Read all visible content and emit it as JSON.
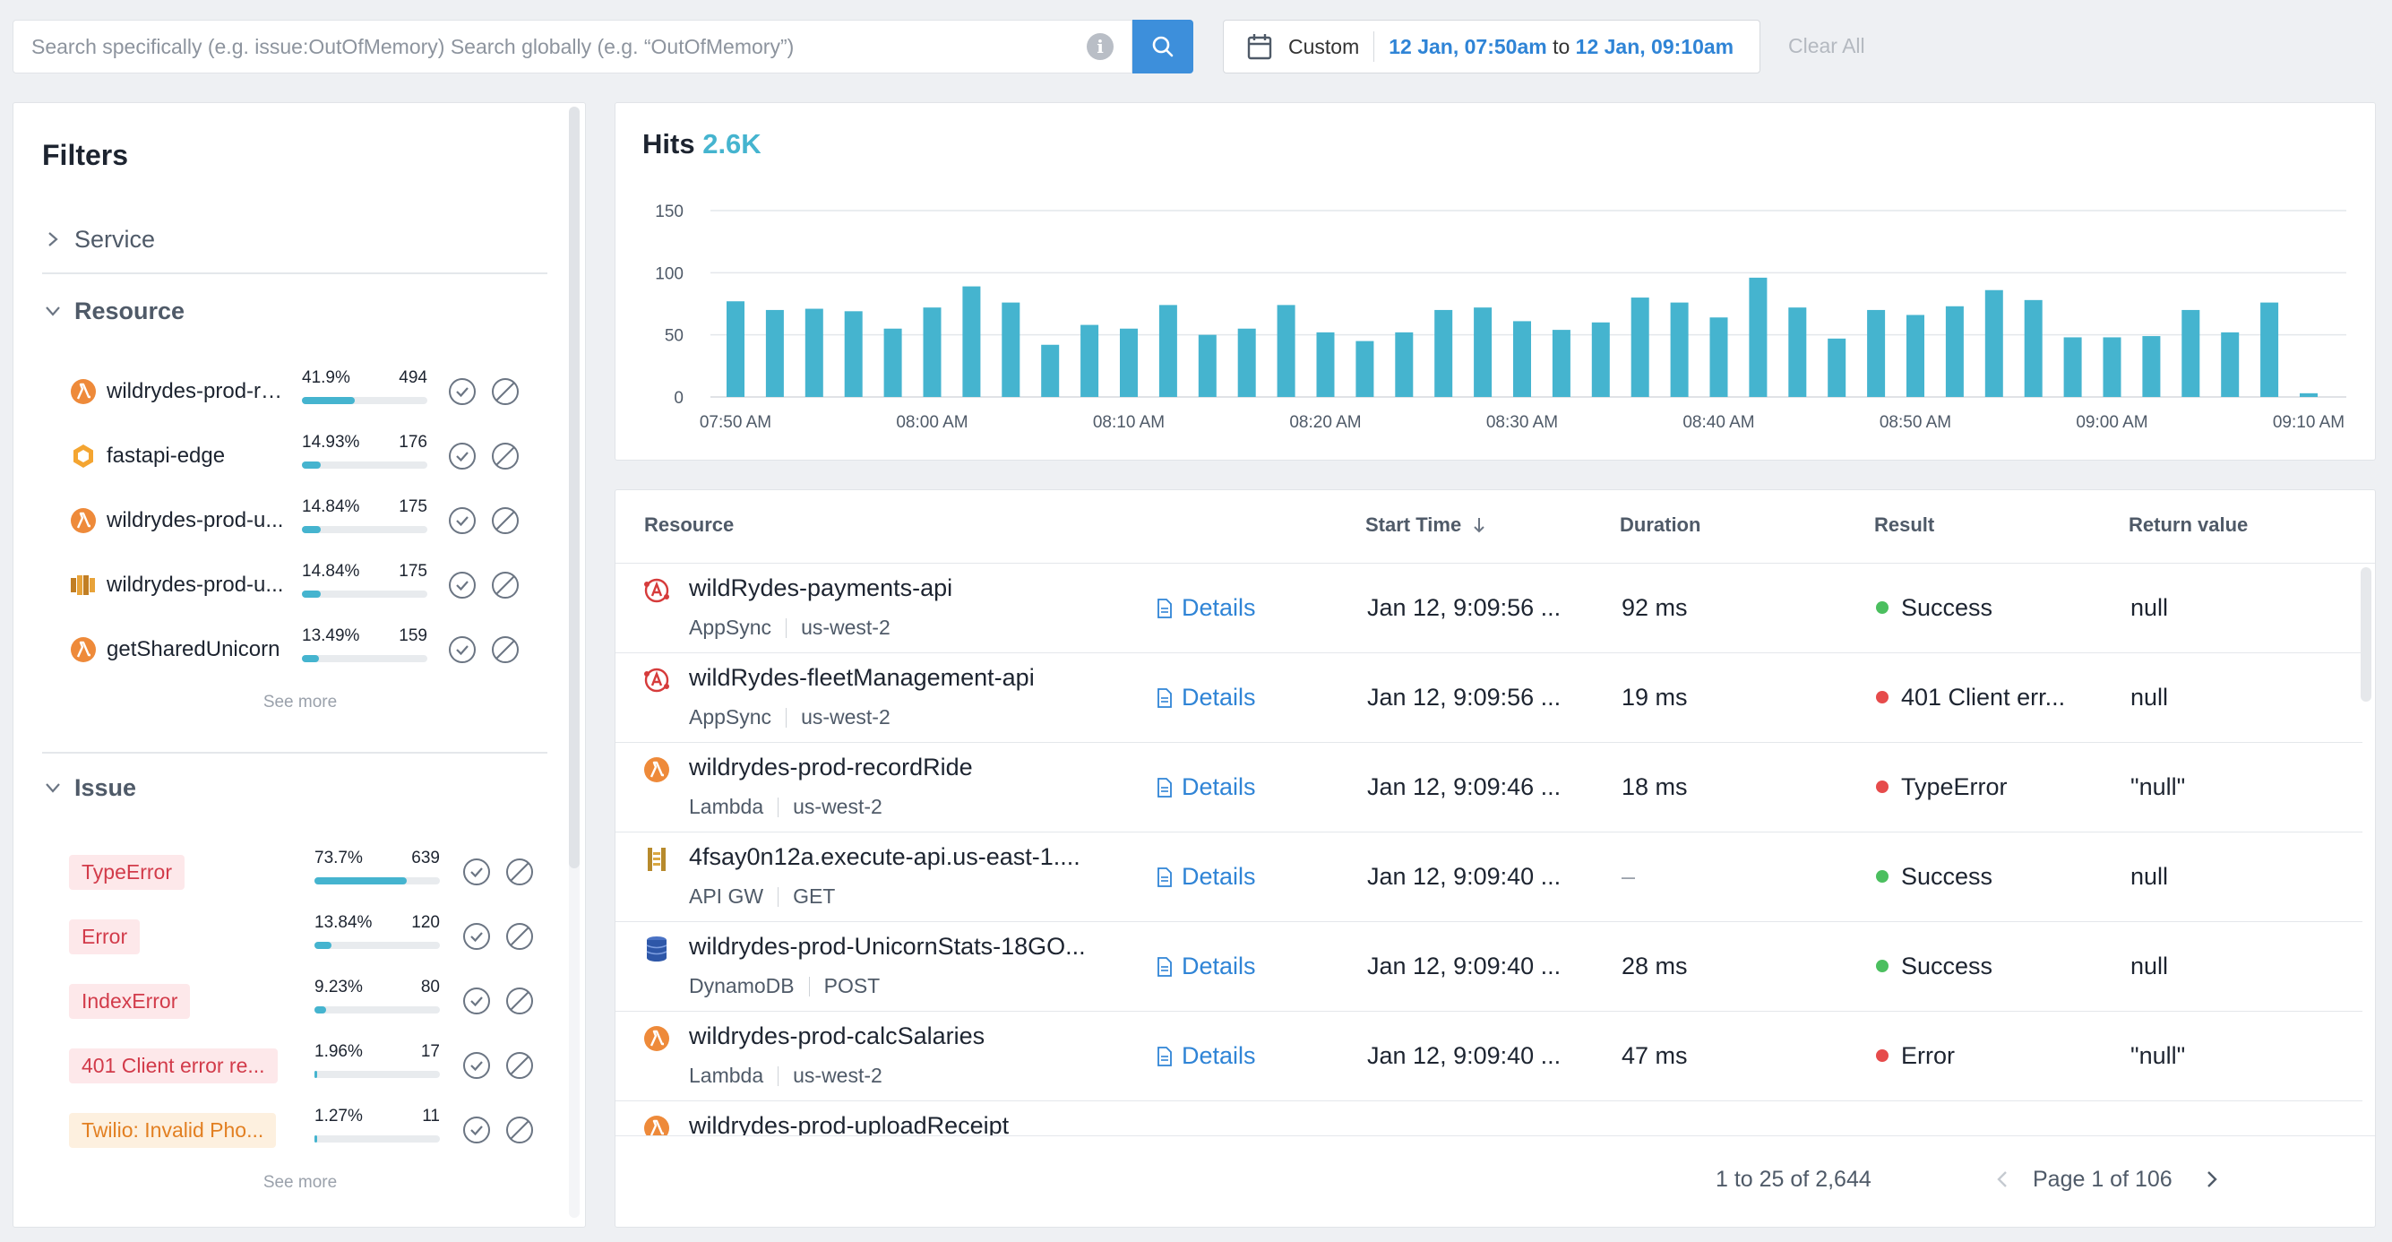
{
  "search": {
    "placeholder": "Search specifically (e.g. issue:OutOfMemory) Search globally (e.g. “OutOfMemory”)",
    "value": ""
  },
  "date_range": {
    "preset": "Custom",
    "from": "12 Jan, 07:50am",
    "joiner": "to",
    "to": "12 Jan, 09:10am"
  },
  "clear_all_label": "Clear All",
  "filters": {
    "title": "Filters",
    "service_label": "Service",
    "resource_label": "Resource",
    "issue_label": "Issue",
    "see_more": "See more",
    "resources": [
      {
        "name": "wildrydes-prod-re...",
        "icon": "lambda-icon",
        "pct": "41.9%",
        "count": "494",
        "fraction": 0.419
      },
      {
        "name": "fastapi-edge",
        "icon": "fastapi-icon",
        "pct": "14.93%",
        "count": "176",
        "fraction": 0.1493
      },
      {
        "name": "wildrydes-prod-u...",
        "icon": "lambda-icon",
        "pct": "14.84%",
        "count": "175",
        "fraction": 0.1484
      },
      {
        "name": "wildrydes-prod-u...",
        "icon": "s3-bucket-icon",
        "pct": "14.84%",
        "count": "175",
        "fraction": 0.1484
      },
      {
        "name": "getSharedUnicorn",
        "icon": "lambda-icon",
        "pct": "13.49%",
        "count": "159",
        "fraction": 0.1349
      }
    ],
    "issues": [
      {
        "name": "TypeError",
        "style": "red",
        "pct": "73.7%",
        "count": "639",
        "fraction": 0.737
      },
      {
        "name": "Error",
        "style": "red",
        "pct": "13.84%",
        "count": "120",
        "fraction": 0.1384
      },
      {
        "name": "IndexError",
        "style": "red",
        "pct": "9.23%",
        "count": "80",
        "fraction": 0.0923
      },
      {
        "name": "401 Client error re...",
        "style": "red",
        "pct": "1.96%",
        "count": "17",
        "fraction": 0.0196
      },
      {
        "name": "Twilio: Invalid Pho...",
        "style": "orange",
        "pct": "1.27%",
        "count": "11",
        "fraction": 0.0127
      }
    ]
  },
  "hits": {
    "label": "Hits",
    "total": "2.6K"
  },
  "chart_data": {
    "type": "bar",
    "title": "Hits",
    "ylim": [
      0,
      150
    ],
    "yticks": [
      0,
      50,
      100,
      150
    ],
    "xtick_labels": [
      "07:50 AM",
      "08:00 AM",
      "08:10 AM",
      "08:20 AM",
      "08:30 AM",
      "08:40 AM",
      "08:50 AM",
      "09:00 AM",
      "09:10 AM"
    ],
    "grid": true,
    "bar_color": "#45b4cf",
    "values": [
      77,
      70,
      71,
      69,
      55,
      72,
      89,
      76,
      42,
      58,
      55,
      74,
      50,
      55,
      74,
      52,
      45,
      52,
      70,
      72,
      61,
      54,
      60,
      80,
      76,
      64,
      96,
      72,
      47,
      70,
      66,
      73,
      86,
      78,
      48,
      48,
      49,
      70,
      52,
      76,
      3
    ]
  },
  "table": {
    "headers": {
      "resource": "Resource",
      "start_time": "Start Time",
      "duration": "Duration",
      "result": "Result",
      "return_value": "Return value"
    },
    "details_label": "Details",
    "rows": [
      {
        "name": "wildRydes-payments-api",
        "icon": "appsync-icon",
        "type": "AppSync",
        "meta": "us-west-2",
        "start": "Jan 12, 9:09:56 ...",
        "duration": "92 ms",
        "result": "Success",
        "status": "green",
        "return": "null"
      },
      {
        "name": "wildRydes-fleetManagement-api",
        "icon": "appsync-icon",
        "type": "AppSync",
        "meta": "us-west-2",
        "start": "Jan 12, 9:09:56 ...",
        "duration": "19 ms",
        "result": "401 Client err...",
        "status": "red",
        "return": "null"
      },
      {
        "name": "wildrydes-prod-recordRide",
        "icon": "lambda-icon",
        "type": "Lambda",
        "meta": "us-west-2",
        "start": "Jan 12, 9:09:46 ...",
        "duration": "18 ms",
        "result": "TypeError",
        "status": "red",
        "return": "\"null\""
      },
      {
        "name": "4fsay0n12a.execute-api.us-east-1....",
        "icon": "api-gateway-icon",
        "type": "API GW",
        "meta": "GET",
        "start": "Jan 12, 9:09:40 ...",
        "duration": "–",
        "result": "Success",
        "status": "green",
        "return": "null"
      },
      {
        "name": "wildrydes-prod-UnicornStats-18GO...",
        "icon": "dynamodb-icon",
        "type": "DynamoDB",
        "meta": "POST",
        "start": "Jan 12, 9:09:40 ...",
        "duration": "28 ms",
        "result": "Success",
        "status": "green",
        "return": "null"
      },
      {
        "name": "wildrydes-prod-calcSalaries",
        "icon": "lambda-icon",
        "type": "Lambda",
        "meta": "us-west-2",
        "start": "Jan 12, 9:09:40 ...",
        "duration": "47 ms",
        "result": "Error",
        "status": "red",
        "return": "\"null\""
      },
      {
        "name": "wildrydes-prod-uploadReceipt",
        "icon": "lambda-icon",
        "type": "",
        "meta": "",
        "start": "",
        "duration": "",
        "result": "",
        "status": "",
        "return": ""
      }
    ],
    "footer": {
      "range": "1 to 25 of 2,644",
      "page": "Page 1 of 106"
    }
  }
}
